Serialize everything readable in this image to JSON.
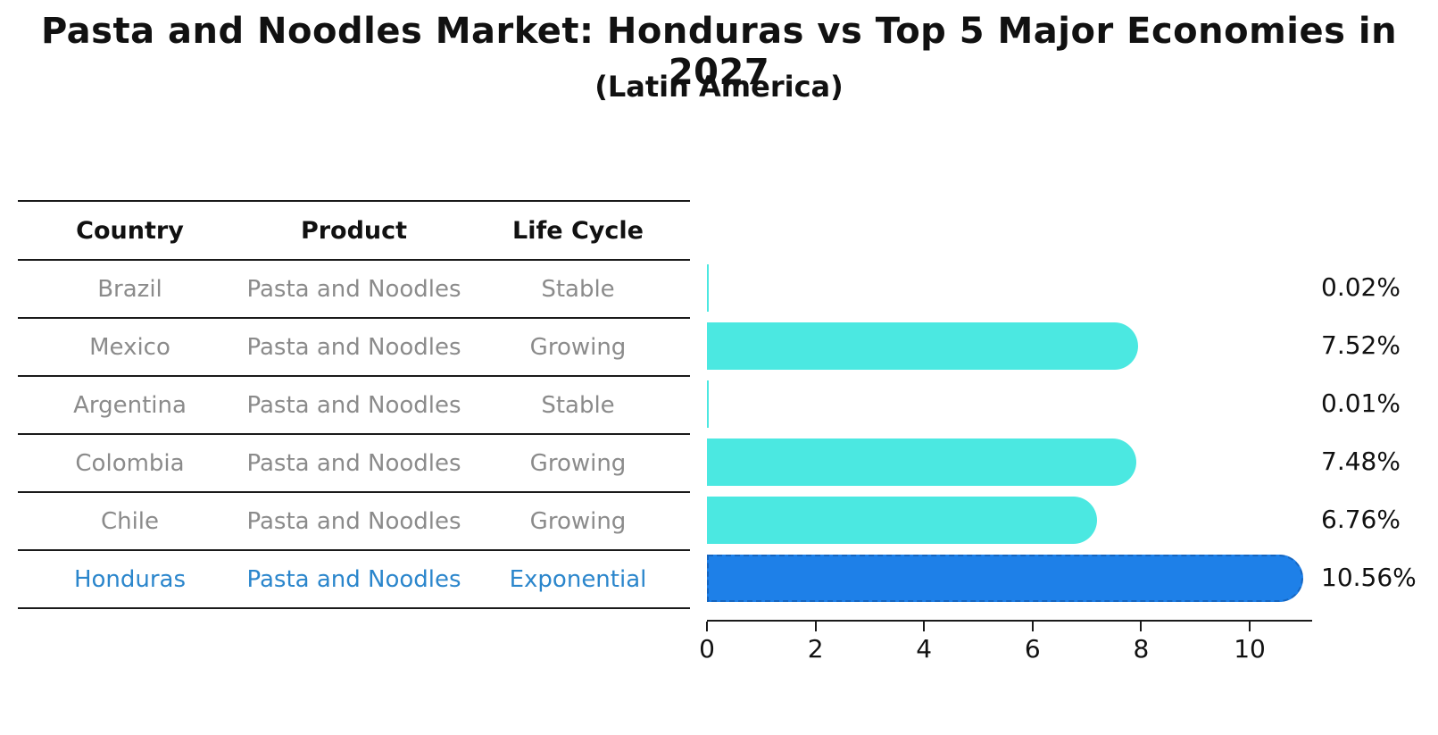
{
  "chart_data": {
    "type": "bar",
    "orientation": "horizontal",
    "title": "Pasta and Noodles Market: Honduras vs Top 5 Major Economies in 2027",
    "subtitle": "(Latin America)",
    "categories": [
      "Brazil",
      "Mexico",
      "Argentina",
      "Colombia",
      "Chile",
      "Honduras"
    ],
    "values": [
      0.02,
      7.52,
      0.01,
      7.48,
      6.76,
      10.56
    ],
    "value_labels": [
      "0.02%",
      "7.52%",
      "0.01%",
      "7.48%",
      "6.76%",
      "10.56%"
    ],
    "x_ticks": [
      "0",
      "2",
      "4",
      "6",
      "8",
      "10"
    ],
    "xlim": [
      0,
      11.15
    ],
    "grid": false,
    "legend": false,
    "highlight_index": 5,
    "colors": {
      "bar": "#4be8e1",
      "highlight_bar": "#1e80e8",
      "highlight_bar_border": "#1565c0",
      "highlight_text": "#2b86cc",
      "table_text": "#8b8b8b",
      "axis": "#1a1a1a"
    }
  },
  "table": {
    "headers": [
      "Country",
      "Product",
      "Life Cycle"
    ],
    "rows": [
      {
        "country": "Brazil",
        "product": "Pasta and Noodles",
        "life_cycle": "Stable",
        "highlight": false
      },
      {
        "country": "Mexico",
        "product": "Pasta and Noodles",
        "life_cycle": "Growing",
        "highlight": false
      },
      {
        "country": "Argentina",
        "product": "Pasta and Noodles",
        "life_cycle": "Stable",
        "highlight": false
      },
      {
        "country": "Colombia",
        "product": "Pasta and Noodles",
        "life_cycle": "Growing",
        "highlight": false
      },
      {
        "country": "Chile",
        "product": "Pasta and Noodles",
        "life_cycle": "Growing",
        "highlight": false
      },
      {
        "country": "Honduras",
        "product": "Pasta and Noodles",
        "life_cycle": "Exponential",
        "highlight": true
      }
    ]
  }
}
